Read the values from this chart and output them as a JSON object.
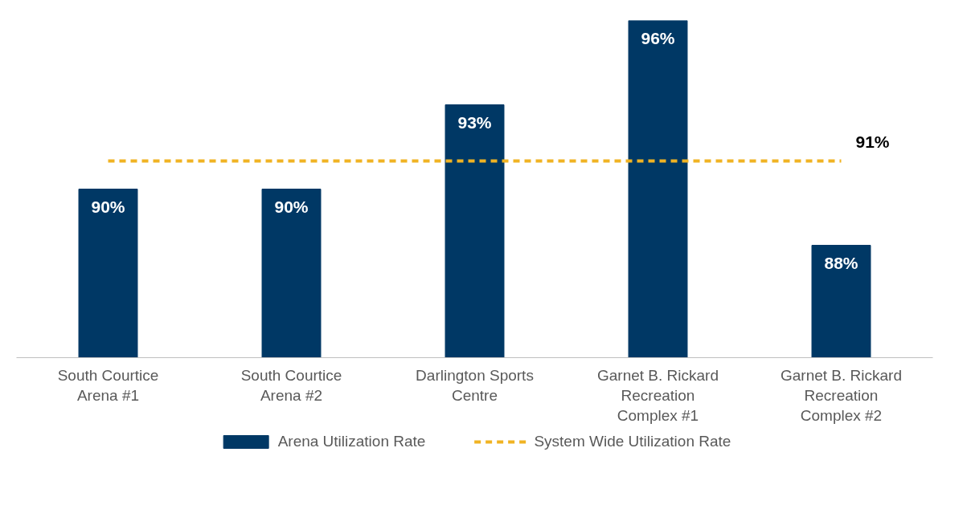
{
  "chart_data": {
    "type": "bar",
    "ylim": [
      84,
      96
    ],
    "categories": [
      "South Courtice Arena #1",
      "South Courtice Arena #2",
      "Darlington Sports Centre",
      "Garnet B. Rickard Recreation Complex #1",
      "Garnet B. Rickard Recreation Complex #2"
    ],
    "series": [
      {
        "name": "Arena Utilization Rate",
        "color": "#003865",
        "values": [
          90,
          90,
          93,
          96,
          88
        ],
        "value_labels": [
          "90%",
          "90%",
          "93%",
          "96%",
          "88%"
        ]
      },
      {
        "name": "System Wide Utilization Rate",
        "type": "line",
        "color": "#f0b323",
        "line_style": "dashed",
        "values": [
          91,
          91,
          91,
          91,
          91
        ],
        "value_labels": [
          null,
          null,
          null,
          null,
          "91%"
        ]
      }
    ],
    "tick_labels": "x",
    "grid": false,
    "legend": "bottom"
  }
}
